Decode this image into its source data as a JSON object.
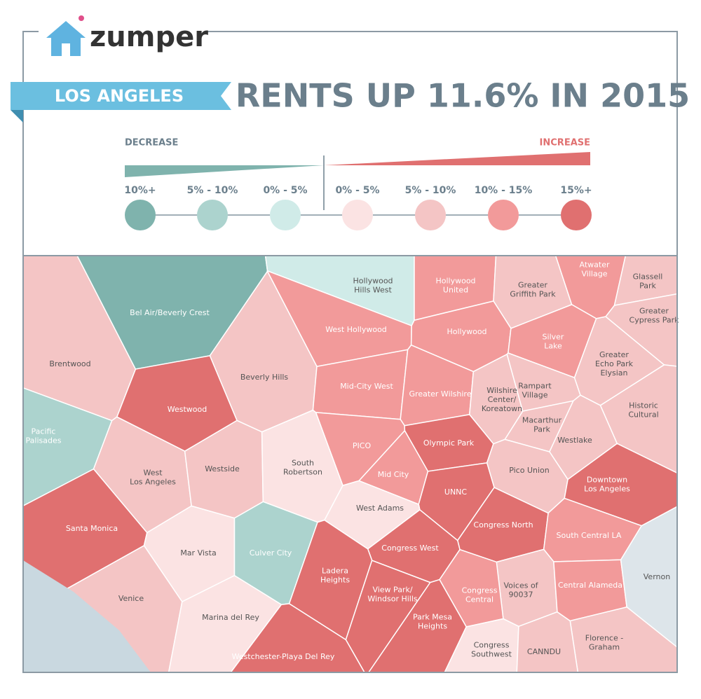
{
  "header": {
    "brand": "zumper",
    "city": "LOS ANGELES",
    "title": "RENTS UP 11.6% IN 2015"
  },
  "legend": {
    "decrease": "DECREASE",
    "increase": "INCREASE",
    "items": [
      {
        "label": "10%+",
        "color": "#7fb3ad"
      },
      {
        "label": "5% - 10%",
        "color": "#acd3ce"
      },
      {
        "label": "0% - 5%",
        "color": "#d0ebe8"
      },
      {
        "label": "0% - 5%",
        "color": "#fbe3e3"
      },
      {
        "label": "5% - 10%",
        "color": "#f4c5c5"
      },
      {
        "label": "10% - 15%",
        "color": "#f29a9a"
      },
      {
        "label": "15%+",
        "color": "#e07070"
      }
    ]
  },
  "neighborhoods": [
    {
      "label": [
        "Brentwood"
      ],
      "color": "#f4c5c5"
    },
    {
      "label": [
        "Bel Air/Beverly Crest"
      ],
      "color": "#7fb3ad"
    },
    {
      "label": [
        "Hollywood",
        "Hills West"
      ],
      "color": "#d0ebe8"
    },
    {
      "label": [
        "Hollywood",
        "United"
      ],
      "color": "#f29a9a"
    },
    {
      "label": [
        "Greater",
        "Griffith Park"
      ],
      "color": "#f4c5c5"
    },
    {
      "label": [
        "Atwater",
        "Village"
      ],
      "color": "#f29a9a"
    },
    {
      "label": [
        "Glassell",
        "Park"
      ],
      "color": "#f4c5c5"
    },
    {
      "label": [
        "Greater",
        "Cypress Park"
      ],
      "color": "#f4c5c5"
    },
    {
      "label": [
        "West Hollywood"
      ],
      "color": "#f29a9a"
    },
    {
      "label": [
        "Hollywood"
      ],
      "color": "#f29a9a"
    },
    {
      "label": [
        "Silver",
        "Lake"
      ],
      "color": "#f29a9a"
    },
    {
      "label": [
        "Beverly Hills"
      ],
      "color": "#f4c5c5"
    },
    {
      "label": [
        "Mid-City West"
      ],
      "color": "#f29a9a"
    },
    {
      "label": [
        "Greater Wilshire"
      ],
      "color": "#f29a9a"
    },
    {
      "label": [
        "Wilshire",
        "Center/",
        "Koreatown"
      ],
      "color": "#f4c5c5"
    },
    {
      "label": [
        "Rampart",
        "Village"
      ],
      "color": "#f4c5c5"
    },
    {
      "label": [
        "Greater",
        "Echo Park",
        "Elysian"
      ],
      "color": "#f4c5c5"
    },
    {
      "label": [
        "Westwood"
      ],
      "color": "#e07070"
    },
    {
      "label": [
        "Pacific",
        "Palisades"
      ],
      "color": "#acd3ce"
    },
    {
      "label": [
        "Historic",
        "Cultural"
      ],
      "color": "#f4c5c5"
    },
    {
      "label": [
        "Macarthur",
        "Park"
      ],
      "color": "#f4c5c5"
    },
    {
      "label": [
        "PICO"
      ],
      "color": "#f29a9a"
    },
    {
      "label": [
        "Olympic Park"
      ],
      "color": "#e07070"
    },
    {
      "label": [
        "Westlake"
      ],
      "color": "#f4c5c5"
    },
    {
      "label": [
        "West",
        "Los Angeles"
      ],
      "color": "#f4c5c5"
    },
    {
      "label": [
        "Westside"
      ],
      "color": "#f4c5c5"
    },
    {
      "label": [
        "South",
        "Robertson"
      ],
      "color": "#fbe3e3"
    },
    {
      "label": [
        "Mid City"
      ],
      "color": "#f29a9a"
    },
    {
      "label": [
        "Pico Union"
      ],
      "color": "#f4c5c5"
    },
    {
      "label": [
        "Downtown",
        "Los Angeles"
      ],
      "color": "#e07070"
    },
    {
      "label": [
        "UNNC"
      ],
      "color": "#e07070"
    },
    {
      "label": [
        "West Adams"
      ],
      "color": "#fbe3e3"
    },
    {
      "label": [
        "Congress North"
      ],
      "color": "#e07070"
    },
    {
      "label": [
        "Santa Monica"
      ],
      "color": "#e07070"
    },
    {
      "label": [
        "South Central LA"
      ],
      "color": "#f29a9a"
    },
    {
      "label": [
        "Mar Vista"
      ],
      "color": "#fbe3e3"
    },
    {
      "label": [
        "Culver City"
      ],
      "color": "#acd3ce"
    },
    {
      "label": [
        "Congress West"
      ],
      "color": "#e07070"
    },
    {
      "label": [
        "Ladera",
        "Heights"
      ],
      "color": "#e07070"
    },
    {
      "label": [
        "View Park/",
        "Windsor Hills"
      ],
      "color": "#e07070"
    },
    {
      "label": [
        "Voices of",
        "90037"
      ],
      "color": "#f4c5c5"
    },
    {
      "label": [
        "Central Alameda"
      ],
      "color": "#f29a9a"
    },
    {
      "label": [
        "Congress",
        "Central"
      ],
      "color": "#f29a9a"
    },
    {
      "label": [
        "Vernon"
      ],
      "color": "#dde5ea"
    },
    {
      "label": [
        "Venice"
      ],
      "color": "#f4c5c5"
    },
    {
      "label": [
        "Marina del Rey"
      ],
      "color": "#fbe3e3"
    },
    {
      "label": [
        "Park Mesa",
        "Heights"
      ],
      "color": "#e07070"
    },
    {
      "label": [
        "Florence -",
        "Graham"
      ],
      "color": "#f4c5c5"
    },
    {
      "label": [
        "Congress",
        "Southwest"
      ],
      "color": "#fbe3e3"
    },
    {
      "label": [
        "CANNDU"
      ],
      "color": "#f4c5c5"
    },
    {
      "label": [
        "Westchester-Playa Del Rey"
      ],
      "color": "#e07070"
    }
  ]
}
